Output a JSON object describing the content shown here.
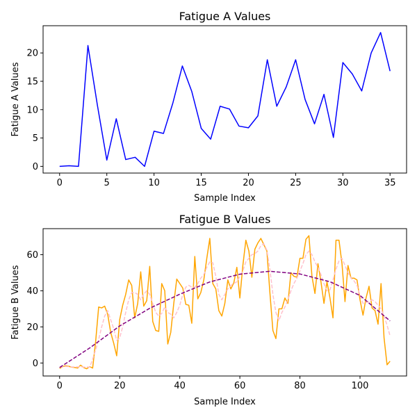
{
  "chart_data": [
    {
      "type": "line",
      "title": "Fatigue A Values",
      "xlabel": "Sample Index",
      "ylabel": "Fatigue A Values",
      "xlim": [
        -1.75,
        36.75
      ],
      "ylim": [
        -1.18,
        24.8
      ],
      "xticks": [
        0,
        5,
        10,
        15,
        20,
        25,
        30,
        35
      ],
      "yticks": [
        0,
        5,
        10,
        15,
        20
      ],
      "grid": false,
      "series": [
        {
          "color": "#0000ff",
          "style": "solid",
          "x": [
            0,
            1,
            2,
            3,
            4,
            5,
            6,
            7,
            8,
            9,
            10,
            11,
            12,
            13,
            14,
            15,
            16,
            17,
            18,
            19,
            20,
            21,
            22,
            23,
            24,
            25,
            26,
            27,
            28,
            29,
            30,
            31,
            32,
            33,
            34,
            35
          ],
          "values": [
            0.0,
            0.1,
            0.0,
            21.3,
            10.8,
            1.1,
            8.4,
            1.2,
            1.6,
            0.0,
            6.2,
            5.8,
            11.2,
            17.7,
            13.2,
            6.7,
            4.8,
            10.6,
            10.1,
            7.1,
            6.8,
            8.9,
            18.8,
            10.6,
            14.0,
            18.8,
            11.8,
            7.5,
            12.7,
            5.1,
            18.3,
            16.3,
            13.3,
            20.0,
            23.6,
            16.8
          ]
        }
      ]
    },
    {
      "type": "line",
      "title": "Fatigue B Values",
      "xlabel": "Sample Index",
      "ylabel": "Fatigue B Values",
      "xlim": [
        -5.5,
        115.5
      ],
      "ylim": [
        -7.2,
        74.4
      ],
      "xticks": [
        0,
        20,
        40,
        60,
        80,
        100
      ],
      "yticks": [
        0,
        20,
        40,
        60
      ],
      "grid": false,
      "series": [
        {
          "color": "#ffa500",
          "style": "solid",
          "x": [
            0,
            1,
            2,
            3,
            4,
            5,
            6,
            7,
            8,
            9,
            10,
            11,
            12,
            13,
            14,
            15,
            16,
            17,
            18,
            19,
            20,
            21,
            22,
            23,
            24,
            25,
            26,
            27,
            28,
            29,
            30,
            31,
            32,
            33,
            34,
            35,
            36,
            37,
            38,
            39,
            40,
            41,
            42,
            43,
            44,
            45,
            46,
            47,
            48,
            49,
            50,
            51,
            52,
            53,
            54,
            55,
            56,
            57,
            58,
            59,
            60,
            61,
            62,
            63,
            64,
            65,
            66,
            67,
            68,
            69,
            70,
            71,
            72,
            73,
            74,
            75,
            76,
            77,
            78,
            79,
            80,
            81,
            82,
            83,
            84,
            85,
            86,
            87,
            88,
            89,
            90,
            91,
            92,
            93,
            94,
            95,
            96,
            97,
            98,
            99,
            100,
            101,
            102,
            103,
            104,
            105,
            106,
            107,
            108,
            109,
            110
          ],
          "values": [
            -3.0,
            -2.0,
            -1.5,
            -1.8,
            -2.3,
            -2.5,
            -2.8,
            -1.2,
            -2.5,
            -3.2,
            -2.0,
            -2.8,
            12.0,
            31.0,
            30.5,
            31.5,
            27.0,
            17.0,
            11.0,
            4.0,
            24.0,
            32.0,
            38.0,
            46.0,
            43.0,
            25.0,
            33.0,
            50.5,
            31.5,
            34.5,
            53.5,
            23.0,
            18.0,
            17.5,
            44.0,
            40.0,
            10.5,
            17.0,
            33.0,
            46.5,
            44.0,
            41.5,
            32.5,
            32.0,
            22.0,
            59.0,
            35.5,
            39.0,
            46.0,
            58.0,
            69.0,
            44.0,
            41.0,
            29.0,
            26.0,
            33.0,
            46.0,
            41.0,
            44.5,
            53.0,
            36.0,
            54.0,
            68.0,
            62.0,
            47.5,
            63.0,
            66.5,
            69.0,
            65.5,
            62.0,
            39.0,
            18.0,
            13.5,
            30.0,
            30.0,
            36.0,
            33.0,
            50.0,
            48.0,
            47.5,
            58.0,
            58.0,
            68.5,
            70.5,
            48.0,
            38.5,
            55.0,
            45.0,
            33.0,
            45.0,
            36.0,
            25.0,
            68.0,
            68.0,
            55.0,
            34.0,
            54.0,
            47.0,
            47.0,
            46.0,
            35.0,
            26.5,
            36.0,
            42.5,
            30.5,
            29.0,
            21.5,
            44.0,
            14.0,
            -1.0,
            1.0
          ]
        },
        {
          "color": "#ffc0cb",
          "style": "dashed",
          "x": [
            0,
            1,
            2,
            3,
            4,
            5,
            6,
            7,
            8,
            9,
            10,
            11,
            12,
            13,
            14,
            15,
            16,
            17,
            18,
            19,
            20,
            21,
            22,
            23,
            24,
            25,
            26,
            27,
            28,
            29,
            30,
            31,
            32,
            33,
            34,
            35,
            36,
            37,
            38,
            39,
            40,
            41,
            42,
            43,
            44,
            45,
            46,
            47,
            48,
            49,
            50,
            51,
            52,
            53,
            54,
            55,
            56,
            57,
            58,
            59,
            60,
            61,
            62,
            63,
            64,
            65,
            66,
            67,
            68,
            69,
            70,
            71,
            72,
            73,
            74,
            75,
            76,
            77,
            78,
            79,
            80,
            81,
            82,
            83,
            84,
            85,
            86,
            87,
            88,
            89,
            90,
            91,
            92,
            93,
            94,
            95,
            96,
            97,
            98,
            99,
            100,
            101,
            102,
            103,
            104,
            105,
            106,
            107,
            108,
            109,
            110
          ],
          "values": [
            -2.4,
            -2.0,
            -1.9,
            -2.0,
            -2.2,
            -2.2,
            -2.2,
            -2.0,
            -2.3,
            -2.1,
            -2.4,
            2.1,
            7.3,
            13.0,
            20.0,
            26.0,
            29.0,
            24.0,
            19.0,
            12.5,
            14.0,
            20.0,
            28.0,
            35.0,
            39.0,
            39.0,
            38.0,
            35.0,
            38.0,
            40.0,
            38.0,
            33.0,
            28.0,
            26.0,
            27.5,
            31.0,
            28.0,
            27.0,
            25.0,
            28.0,
            32.0,
            38.0,
            42.0,
            43.0,
            42.0,
            42.0,
            44.0,
            47.0,
            49.0,
            53.0,
            56.0,
            55.5,
            48.0,
            38.0,
            35.0,
            38.0,
            41.0,
            43.0,
            44.0,
            45.0,
            48.0,
            51.0,
            56.0,
            58.0,
            60.0,
            60.5,
            62.0,
            65.0,
            66.0,
            62.5,
            52.0,
            38.0,
            28.0,
            23.5,
            28.0,
            31.0,
            35.0,
            40.0,
            44.0,
            47.0,
            51.0,
            55.0,
            60.0,
            62.0,
            60.0,
            56.0,
            53.0,
            49.0,
            44.0,
            40.0,
            40.5,
            46.0,
            52.0,
            56.5,
            58.0,
            54.0,
            50.0,
            47.0,
            45.5,
            43.0,
            37.5,
            33.0,
            33.5,
            34.0,
            35.0,
            34.0,
            32.0,
            30.0,
            26.0,
            21.0,
            15.0
          ]
        },
        {
          "color": "#800080",
          "style": "dashed",
          "x": [
            0,
            10,
            20,
            30,
            40,
            50,
            60,
            70,
            80,
            90,
            100,
            110
          ],
          "values": [
            -2.5,
            8.3,
            20.5,
            30.3,
            38.1,
            44.9,
            49.2,
            50.8,
            49.3,
            45.0,
            37.4,
            23.3
          ]
        }
      ]
    }
  ]
}
